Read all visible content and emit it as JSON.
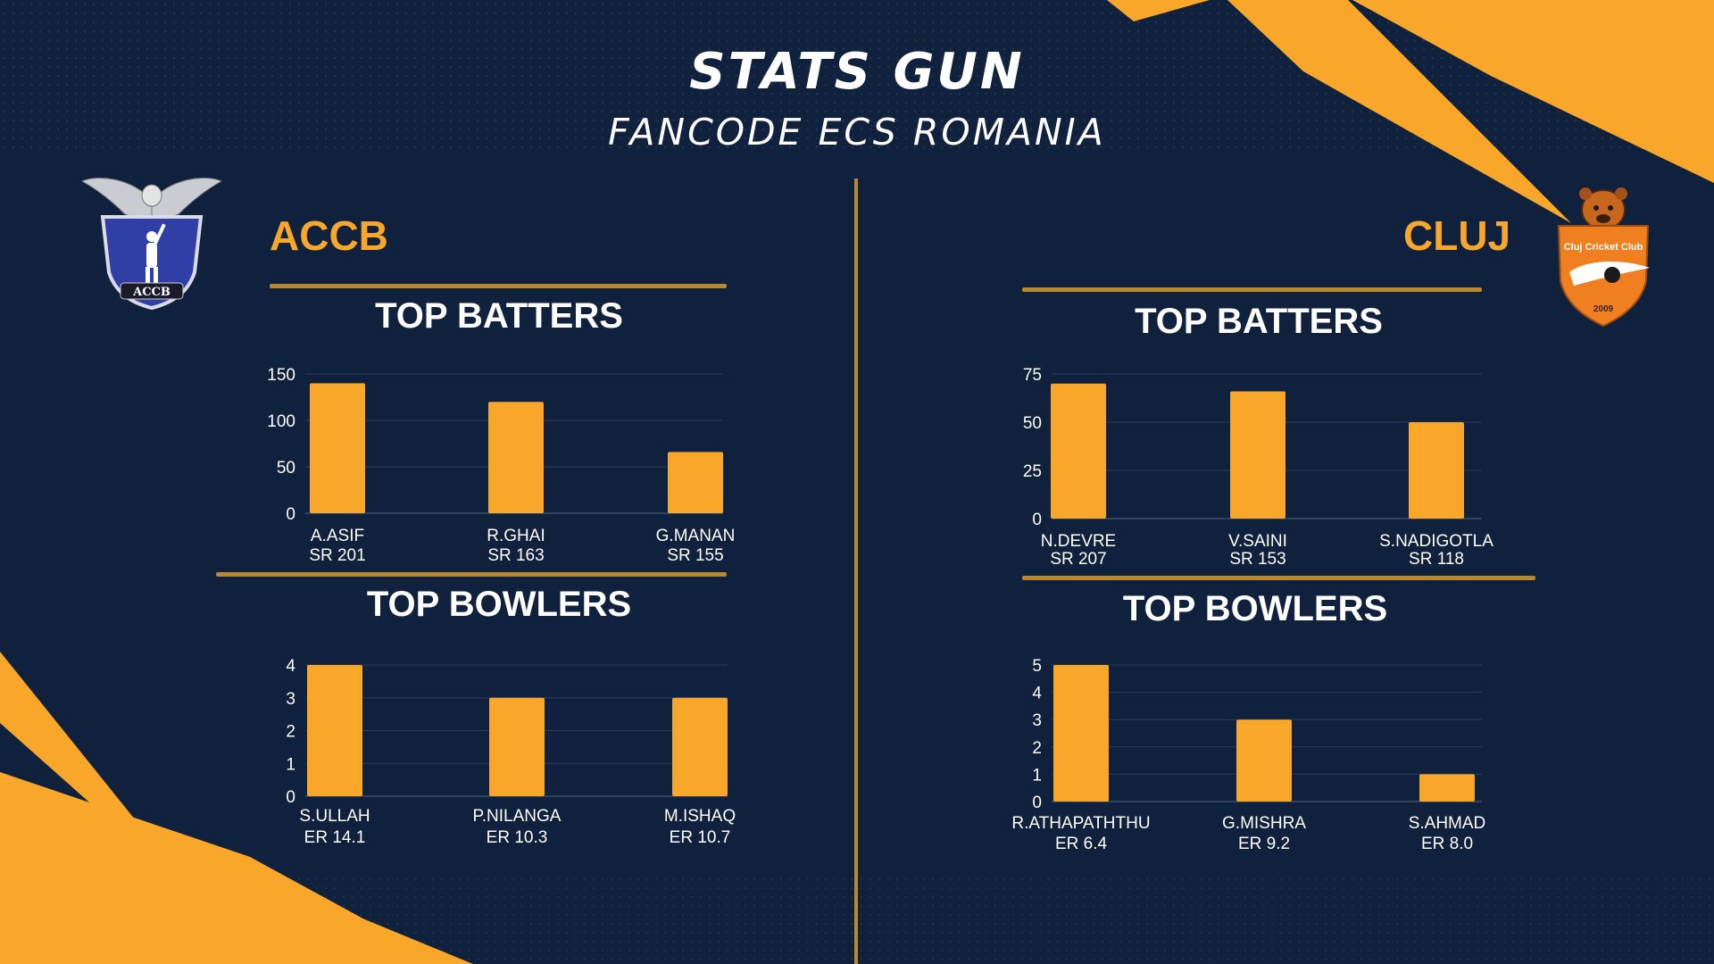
{
  "header": {
    "title": "STATS GUN",
    "subtitle": "FANCODE ECS ROMANIA"
  },
  "teams": {
    "left": {
      "name": "ACCB",
      "logo_text": "ACCB"
    },
    "right": {
      "name": "CLUJ",
      "logo_text": "Cluj Cricket Club",
      "logo_year": "2009"
    }
  },
  "sections": {
    "batters_title": "TOP BATTERS",
    "bowlers_title": "TOP BOWLERS"
  },
  "colors": {
    "background": "#10213d",
    "accent": "#f8a72a",
    "bar": "#f8a72a",
    "divider": "#b9882c",
    "text": "#ffffff"
  },
  "chart_data": [
    {
      "type": "bar",
      "title": "TOP BATTERS",
      "team": "ACCB",
      "categories": [
        "A.ASIF",
        "R.GHAI",
        "G.MANAN"
      ],
      "sublabels": [
        "SR 201",
        "SR 163",
        "SR 155"
      ],
      "values": [
        140,
        120,
        66
      ],
      "yticks": [
        0,
        50,
        100,
        150
      ],
      "ylim": [
        0,
        150
      ],
      "grid": true,
      "legend": "none"
    },
    {
      "type": "bar",
      "title": "TOP BOWLERS",
      "team": "ACCB",
      "categories": [
        "S.ULLAH",
        "P.NILANGA",
        "M.ISHAQ"
      ],
      "sublabels": [
        "ER 14.1",
        "ER 10.3",
        "ER 10.7"
      ],
      "values": [
        4,
        3,
        3
      ],
      "yticks": [
        0,
        1,
        2,
        3,
        4
      ],
      "ylim": [
        0,
        4
      ],
      "grid": true,
      "legend": "none"
    },
    {
      "type": "bar",
      "title": "TOP BATTERS",
      "team": "CLUJ",
      "categories": [
        "N.DEVRE",
        "V.SAINI",
        "S.NADIGOTLA"
      ],
      "sublabels": [
        "SR 207",
        "SR 153",
        "SR 118"
      ],
      "values": [
        70,
        66,
        50
      ],
      "yticks": [
        0,
        25,
        50,
        75
      ],
      "ylim": [
        0,
        75
      ],
      "grid": true,
      "legend": "none"
    },
    {
      "type": "bar",
      "title": "TOP BOWLERS",
      "team": "CLUJ",
      "categories": [
        "R.ATHAPATHTHU",
        "G.MISHRA",
        "S.AHMAD"
      ],
      "sublabels": [
        "ER 6.4",
        "ER 9.2",
        "ER 8.0"
      ],
      "values": [
        5,
        3,
        1
      ],
      "yticks": [
        0,
        1,
        2,
        3,
        4,
        5
      ],
      "ylim": [
        0,
        5
      ],
      "grid": true,
      "legend": "none"
    }
  ]
}
